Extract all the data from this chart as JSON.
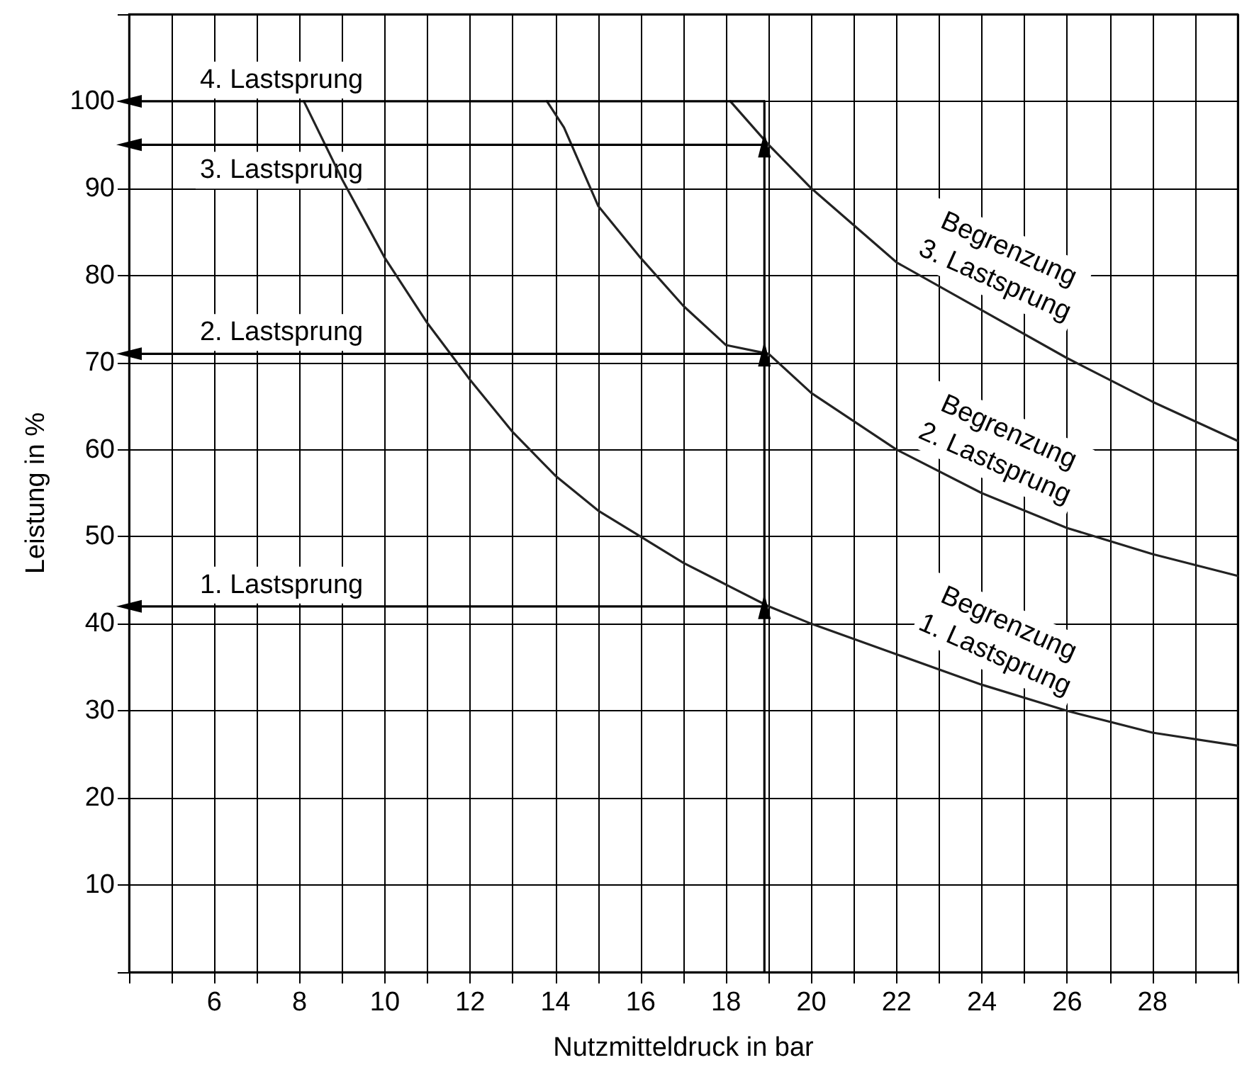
{
  "chart_data": {
    "type": "line",
    "xlabel": "Nutzmitteldruck in bar",
    "ylabel": "Leistung in %",
    "xlim": [
      4,
      30
    ],
    "ylim": [
      0,
      110
    ],
    "xticks": [
      {
        "value": 4,
        "label": null
      },
      {
        "value": 5,
        "label": null
      },
      6,
      {
        "value": 7,
        "label": null
      },
      8,
      {
        "value": 9,
        "label": null
      },
      10,
      {
        "value": 11,
        "label": null
      },
      12,
      {
        "value": 13,
        "label": null
      },
      14,
      {
        "value": 15,
        "label": null
      },
      16,
      {
        "value": 17,
        "label": null
      },
      18,
      {
        "value": 19,
        "label": null
      },
      20,
      {
        "value": 21,
        "label": null
      },
      22,
      {
        "value": 23,
        "label": null
      },
      24,
      {
        "value": 25,
        "label": null
      },
      26,
      {
        "value": 27,
        "label": null
      },
      28,
      {
        "value": 29,
        "label": null
      },
      {
        "value": 30,
        "label": null
      }
    ],
    "yticks": [
      {
        "value": 0,
        "label": null
      },
      10,
      20,
      30,
      40,
      50,
      60,
      70,
      80,
      90,
      100,
      {
        "value": 110,
        "label": null
      }
    ],
    "grid": true,
    "legend": false,
    "marker": "none",
    "series": [
      {
        "name": "Begrenzung\n1. Lastsprung",
        "color": "#222222",
        "x": [
          8.1,
          9,
          10,
          11,
          12,
          13,
          14,
          15,
          16,
          17,
          18,
          19,
          20,
          22,
          24,
          26,
          28,
          30
        ],
        "values": [
          100,
          91,
          82,
          74.5,
          68,
          62,
          57,
          53,
          50,
          47,
          44.5,
          42,
          40,
          36.5,
          33,
          30,
          27.5,
          26
        ]
      },
      {
        "name": "Begrenzung\n2. Lastsprung",
        "color": "#222222",
        "x": [
          13.8,
          14.2,
          15,
          16,
          17,
          18,
          19,
          20,
          22,
          24,
          26,
          28,
          30
        ],
        "values": [
          100,
          97,
          88,
          82,
          76.5,
          72,
          71,
          66.5,
          60,
          55,
          51,
          48,
          45.5
        ]
      },
      {
        "name": "Begrenzung\n3. Lastsprung",
        "color": "#222222",
        "x": [
          18.1,
          19,
          20,
          22,
          24,
          26,
          28,
          30
        ],
        "values": [
          100,
          95,
          90,
          81.5,
          76,
          70.5,
          65.5,
          61
        ]
      },
      {
        "color": "#000000",
        "marker": "triangle",
        "x": [
          18.9,
          18.9
        ],
        "values": [
          0,
          42
        ]
      },
      {
        "color": "#000000",
        "marker": "triangle",
        "x": [
          18.9,
          18.9
        ],
        "values": [
          42,
          71
        ]
      },
      {
        "color": "#000000",
        "marker": "triangle",
        "x": [
          18.9,
          18.9
        ],
        "values": [
          71,
          95
        ]
      },
      {
        "color": "#000000",
        "x": [
          18.9,
          18.9
        ],
        "values": [
          95,
          100
        ]
      },
      {
        "name": "1. Lastsprung",
        "color": "#000000",
        "marker": "triangle",
        "x": [
          18.9,
          4
        ],
        "values": [
          42,
          42
        ]
      },
      {
        "name": "2. Lastsprung",
        "color": "#000000",
        "marker": "triangle",
        "x": [
          18.9,
          4
        ],
        "values": [
          71,
          71
        ]
      },
      {
        "name": "3. Lastsprung",
        "color": "#000000",
        "marker": "triangle",
        "x": [
          18.9,
          4
        ],
        "values": [
          95,
          95
        ]
      },
      {
        "name": "4. Lastsprung",
        "color": "#000000",
        "marker": "triangle",
        "x": [
          18.9,
          4
        ],
        "values": [
          100,
          100
        ]
      }
    ]
  }
}
